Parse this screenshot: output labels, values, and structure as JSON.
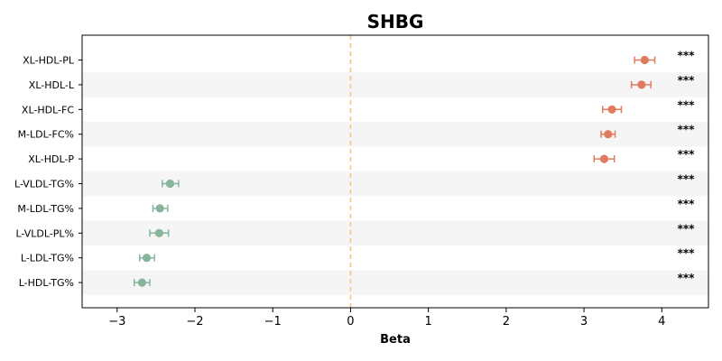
{
  "chart_data": {
    "type": "scatter",
    "subtype": "forest-plot",
    "title": "SHBG",
    "xlabel": "Beta",
    "ylabel": "",
    "xlim": [
      -3.45,
      4.6
    ],
    "xticks": [
      -3,
      -2,
      -1,
      0,
      1,
      2,
      3,
      4
    ],
    "xtick_labels": [
      "−3",
      "−2",
      "−1",
      "0",
      "1",
      "2",
      "3",
      "4"
    ],
    "reference_line": 0,
    "grid": false,
    "row_shading": "alternating",
    "colors": {
      "positive": "#e07b5f",
      "negative": "#87b59c",
      "reference_line": "#f2c57c",
      "row_band": "#f5f5f5"
    },
    "rows": [
      {
        "label": "XL-HDL-PL",
        "beta": 3.78,
        "ci_low": 3.65,
        "ci_high": 3.91,
        "sig": "***"
      },
      {
        "label": "XL-HDL-L",
        "beta": 3.74,
        "ci_low": 3.61,
        "ci_high": 3.86,
        "sig": "***"
      },
      {
        "label": "XL-HDL-FC",
        "beta": 3.36,
        "ci_low": 3.24,
        "ci_high": 3.48,
        "sig": "***"
      },
      {
        "label": "M-LDL-FC%",
        "beta": 3.31,
        "ci_low": 3.22,
        "ci_high": 3.4,
        "sig": "***"
      },
      {
        "label": "XL-HDL-P",
        "beta": 3.26,
        "ci_low": 3.13,
        "ci_high": 3.39,
        "sig": "***"
      },
      {
        "label": "L-VLDL-TG%",
        "beta": -2.32,
        "ci_low": -2.42,
        "ci_high": -2.21,
        "sig": "***"
      },
      {
        "label": "M-LDL-TG%",
        "beta": -2.45,
        "ci_low": -2.54,
        "ci_high": -2.35,
        "sig": "***"
      },
      {
        "label": "L-VLDL-PL%",
        "beta": -2.46,
        "ci_low": -2.58,
        "ci_high": -2.34,
        "sig": "***"
      },
      {
        "label": "L-LDL-TG%",
        "beta": -2.62,
        "ci_low": -2.71,
        "ci_high": -2.52,
        "sig": "***"
      },
      {
        "label": "L-HDL-TG%",
        "beta": -2.68,
        "ci_low": -2.78,
        "ci_high": -2.58,
        "sig": "***"
      }
    ]
  }
}
